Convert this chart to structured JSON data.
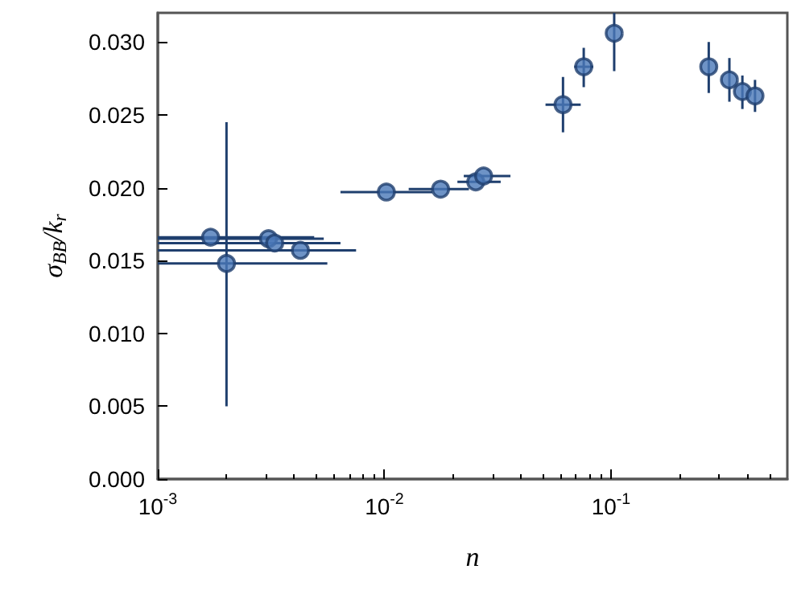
{
  "chart_data": {
    "type": "scatter",
    "xlabel": "n",
    "ylabel": "σ$_{BB}$/k$_{r}$",
    "log": "x",
    "grid": false,
    "marker": "circle",
    "xlim": [
      0.001,
      0.6
    ],
    "xticks": [
      {
        "value": 0.001,
        "label": "10$^{-3}$"
      },
      {
        "value": 0.01,
        "label": "10$^{-2}$"
      },
      {
        "value": 0.1,
        "label": "10$^{-1}$"
      }
    ],
    "ylim": [
      0,
      0.032
    ],
    "yticks": [
      {
        "value": 0,
        "label": "0.000"
      },
      {
        "value": 0.005,
        "label": "0.005"
      },
      {
        "value": 0.01,
        "label": "0.010"
      },
      {
        "value": 0.015,
        "label": "0.015"
      },
      {
        "value": 0.02,
        "label": "0.020"
      },
      {
        "value": 0.025,
        "label": "0.025"
      },
      {
        "value": 0.03,
        "label": "0.030"
      }
    ],
    "series": [
      {
        "color": "#4a78b8",
        "x": [
          0.00171,
          0.00201,
          0.00308,
          0.00328,
          0.00426,
          0.0102,
          0.0177,
          0.0253,
          0.0274,
          0.0614,
          0.0758,
          0.1033,
          0.27,
          0.333,
          0.38,
          0.432
        ],
        "values": [
          0.0166,
          0.0148,
          0.0165,
          0.0162,
          0.0157,
          0.0197,
          0.0199,
          0.0204,
          0.0208,
          0.0257,
          0.0283,
          0.0306,
          0.0283,
          0.0274,
          0.0266,
          0.0263
        ],
        "errors": [
          null,
          [
            0.005,
            0.0245
          ],
          null,
          null,
          null,
          null,
          null,
          null,
          null,
          [
            0.0238,
            0.0276
          ],
          [
            0.0269,
            0.0296
          ],
          [
            0.028,
            0.032
          ],
          [
            0.0265,
            0.03
          ],
          [
            0.0259,
            0.0289
          ],
          [
            0.0254,
            0.0277
          ],
          [
            0.0252,
            0.0274
          ]
        ],
        "xerrors": [
          [
            0.001,
            0.0049
          ],
          [
            0.001,
            0.0056
          ],
          [
            0.001,
            0.0054
          ],
          [
            0.001,
            0.0064
          ],
          [
            0.001,
            0.0075
          ],
          [
            0.0064,
            0.0163
          ],
          [
            0.0128,
            0.0236
          ],
          [
            0.021,
            0.0326
          ],
          [
            0.0224,
            0.036
          ],
          [
            0.0514,
            0.0735
          ],
          [
            0.0688,
            0.0835
          ],
          null,
          null,
          null,
          null,
          null
        ]
      }
    ]
  }
}
